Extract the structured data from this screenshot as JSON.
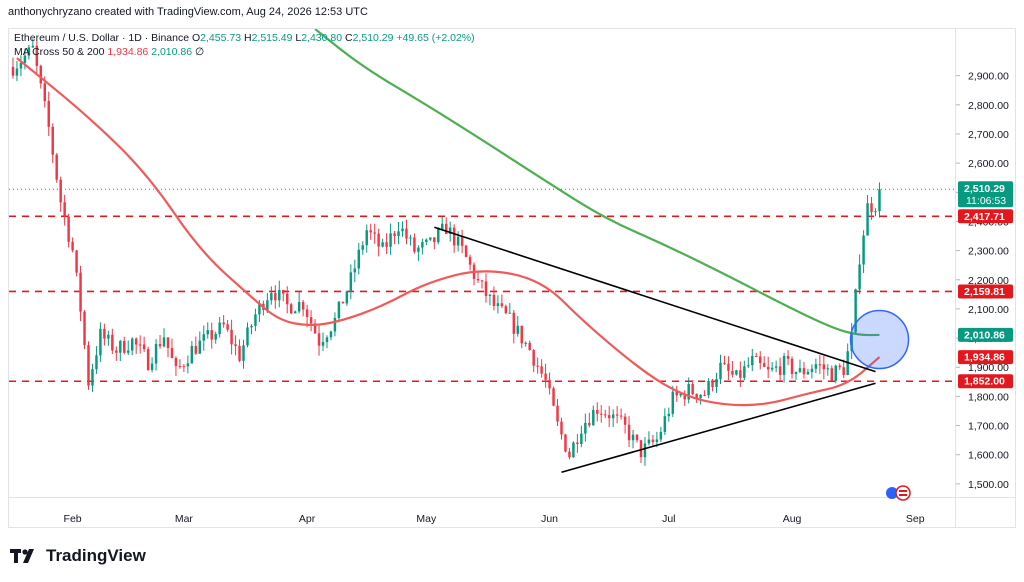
{
  "credit": "anthonychryzano created with TradingView.com, Aug 24, 2026 12:53 UTC",
  "legend": {
    "symbol": "Ethereum / U.S. Dollar · 1D · Binance",
    "o_label": "O",
    "o": "2,455.73",
    "h_label": "H",
    "h": "2,515.49",
    "l_label": "L",
    "l": "2,430.80",
    "c_label": "C",
    "c": "2,510.29",
    "change": "+49.65 (+2.02%)",
    "ma_label": "MA Cross 50 & 200",
    "ma_short": "1,934.86",
    "ma_long": "2,010.86",
    "ma_symbol": "∅"
  },
  "footer": {
    "brand": "TradingView",
    "logo_icon": "tradingview-logo-icon"
  },
  "colors": {
    "up": "#089981",
    "down": "#f23645",
    "ma_short": "#f05a5a",
    "ma_long": "#4caf50",
    "level": "#e3171e",
    "circle": "#3366ff"
  },
  "chart_data": {
    "type": "candlestick",
    "symbol": "ETHUSD",
    "timeframe": "1D",
    "ylim": [
      1455,
      3060
    ],
    "yticks": [
      1500,
      1600,
      1700,
      1800,
      1900,
      2000,
      2100,
      2200,
      2300,
      2400,
      2500,
      2600,
      2700,
      2800,
      2900
    ],
    "ytick_labels": [
      "1,500.00",
      "1,600.00",
      "1,700.00",
      "1,800.00",
      "1,900.00",
      "2,000.00",
      "2,100.00",
      "2,200.00",
      "2,300.00",
      "2,400.00",
      "2,500.00",
      "2,600.00",
      "2,700.00",
      "2,800.00",
      "2,900.00"
    ],
    "x_range": [
      "2026-01-16",
      "2026-09-11"
    ],
    "xticks": [
      {
        "date": "2026-02-01",
        "label": "Feb"
      },
      {
        "date": "2026-03-01",
        "label": "Mar"
      },
      {
        "date": "2026-04-01",
        "label": "Apr"
      },
      {
        "date": "2026-05-01",
        "label": "May"
      },
      {
        "date": "2026-06-01",
        "label": "Jun"
      },
      {
        "date": "2026-07-01",
        "label": "Jul"
      },
      {
        "date": "2026-08-01",
        "label": "Aug"
      },
      {
        "date": "2026-09-01",
        "label": "Sep"
      }
    ],
    "price_anchors": [
      [
        "2026-01-17",
        2930
      ],
      [
        "2026-01-22",
        2990
      ],
      [
        "2026-01-26",
        2720
      ],
      [
        "2026-01-29",
        2470
      ],
      [
        "2026-02-01",
        2300
      ],
      [
        "2026-02-03",
        2100
      ],
      [
        "2026-02-05",
        1850
      ],
      [
        "2026-02-08",
        2010
      ],
      [
        "2026-02-12",
        1960
      ],
      [
        "2026-02-16",
        1990
      ],
      [
        "2026-02-20",
        1920
      ],
      [
        "2026-02-24",
        2010
      ],
      [
        "2026-02-27",
        1880
      ],
      [
        "2026-03-03",
        1960
      ],
      [
        "2026-03-07",
        2000
      ],
      [
        "2026-03-11",
        2040
      ],
      [
        "2026-03-15",
        1940
      ],
      [
        "2026-03-19",
        2080
      ],
      [
        "2026-03-23",
        2170
      ],
      [
        "2026-03-27",
        2110
      ],
      [
        "2026-03-31",
        2120
      ],
      [
        "2026-04-04",
        1990
      ],
      [
        "2026-04-08",
        2060
      ],
      [
        "2026-04-12",
        2200
      ],
      [
        "2026-04-16",
        2370
      ],
      [
        "2026-04-20",
        2300
      ],
      [
        "2026-04-24",
        2390
      ],
      [
        "2026-04-28",
        2300
      ],
      [
        "2026-05-02",
        2320
      ],
      [
        "2026-05-06",
        2380
      ],
      [
        "2026-05-10",
        2300
      ],
      [
        "2026-05-14",
        2190
      ],
      [
        "2026-05-18",
        2110
      ],
      [
        "2026-05-22",
        2060
      ],
      [
        "2026-05-27",
        1960
      ],
      [
        "2026-05-31",
        1850
      ],
      [
        "2026-06-03",
        1700
      ],
      [
        "2026-06-06",
        1600
      ],
      [
        "2026-06-09",
        1700
      ],
      [
        "2026-06-13",
        1760
      ],
      [
        "2026-06-16",
        1740
      ],
      [
        "2026-06-20",
        1690
      ],
      [
        "2026-06-24",
        1610
      ],
      [
        "2026-06-28",
        1650
      ],
      [
        "2026-07-02",
        1790
      ],
      [
        "2026-07-06",
        1820
      ],
      [
        "2026-07-10",
        1810
      ],
      [
        "2026-07-14",
        1900
      ],
      [
        "2026-07-18",
        1860
      ],
      [
        "2026-07-22",
        1920
      ],
      [
        "2026-07-26",
        1880
      ],
      [
        "2026-07-30",
        1910
      ],
      [
        "2026-08-03",
        1880
      ],
      [
        "2026-08-07",
        1910
      ],
      [
        "2026-08-11",
        1880
      ],
      [
        "2026-08-14",
        1895
      ],
      [
        "2026-08-16",
        2000
      ],
      [
        "2026-08-18",
        2280
      ],
      [
        "2026-08-20",
        2450
      ],
      [
        "2026-08-22",
        2460
      ],
      [
        "2026-08-23",
        2510
      ]
    ],
    "series": [
      {
        "name": "MA 50",
        "color": "#f05a5a",
        "points": [
          [
            "2026-01-18",
            2960
          ],
          [
            "2026-02-05",
            2760
          ],
          [
            "2026-02-20",
            2560
          ],
          [
            "2026-03-05",
            2300
          ],
          [
            "2026-03-18",
            2140
          ],
          [
            "2026-03-25",
            2060
          ],
          [
            "2026-04-02",
            2040
          ],
          [
            "2026-04-10",
            2060
          ],
          [
            "2026-04-20",
            2110
          ],
          [
            "2026-05-01",
            2190
          ],
          [
            "2026-05-15",
            2240
          ],
          [
            "2026-05-30",
            2200
          ],
          [
            "2026-06-10",
            2050
          ],
          [
            "2026-06-25",
            1880
          ],
          [
            "2026-07-05",
            1800
          ],
          [
            "2026-07-15",
            1770
          ],
          [
            "2026-07-25",
            1770
          ],
          [
            "2026-08-05",
            1810
          ],
          [
            "2026-08-15",
            1840
          ],
          [
            "2026-08-23",
            1934.86
          ]
        ]
      },
      {
        "name": "MA 200",
        "color": "#4caf50",
        "points": [
          [
            "2026-04-03",
            3060
          ],
          [
            "2026-04-15",
            2930
          ],
          [
            "2026-05-01",
            2800
          ],
          [
            "2026-05-15",
            2680
          ],
          [
            "2026-06-01",
            2530
          ],
          [
            "2026-06-15",
            2410
          ],
          [
            "2026-06-30",
            2320
          ],
          [
            "2026-07-15",
            2220
          ],
          [
            "2026-08-01",
            2100
          ],
          [
            "2026-08-12",
            2030
          ],
          [
            "2026-08-18",
            2010
          ],
          [
            "2026-08-23",
            2010.86
          ]
        ]
      }
    ],
    "horizontal_levels": [
      {
        "value": 2417.71,
        "label": "2,417.71"
      },
      {
        "value": 2159.81,
        "label": "2,159.81"
      },
      {
        "value": 1852.0,
        "label": "1,852.00"
      }
    ],
    "trendlines": [
      {
        "start": [
          "2026-05-03",
          2380
        ],
        "end": [
          "2026-08-22",
          1885
        ]
      },
      {
        "start": [
          "2026-06-04",
          1540
        ],
        "end": [
          "2026-08-22",
          1845
        ]
      }
    ],
    "highlight_circle": {
      "date": "2026-08-21",
      "value": 1995
    },
    "price_labels": [
      {
        "value": 2510.29,
        "label": "2,510.29",
        "sub": "11:06:53",
        "color": "#089981"
      },
      {
        "value": 2417.71,
        "label": "2,417.71",
        "color": "#e3171e"
      },
      {
        "value": 2159.81,
        "label": "2,159.81",
        "color": "#e3171e"
      },
      {
        "value": 2010.86,
        "label": "2,010.86",
        "color": "#089981"
      },
      {
        "value": 1934.86,
        "label": "1,934.86",
        "color": "#e3171e"
      },
      {
        "value": 1852.0,
        "label": "1,852.00",
        "color": "#e3171e"
      }
    ],
    "grid": false
  }
}
